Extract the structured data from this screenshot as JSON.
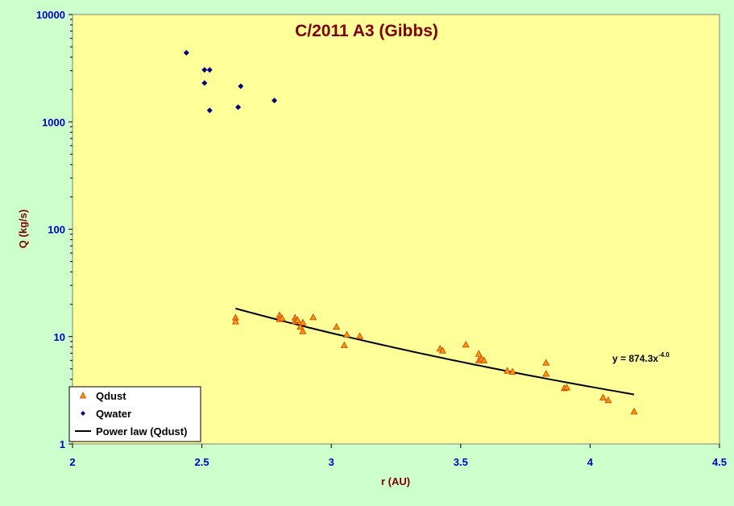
{
  "chart_data": {
    "type": "scatter",
    "title": "C/2011 A3 (Gibbs)",
    "xlabel": "r (AU)",
    "ylabel": "Q (kg/s)",
    "xlim": [
      2,
      4.5
    ],
    "ylim": [
      1,
      10000
    ],
    "yscale": "log",
    "x_ticks": [
      "2",
      "2.5",
      "3",
      "3.5",
      "4",
      "4.5"
    ],
    "y_ticks": [
      "1",
      "10",
      "100",
      "1000",
      "10000"
    ],
    "grid": false,
    "legend_position": "bottom-left",
    "series": [
      {
        "name": "Qdust",
        "marker": "triangle",
        "color": "#ff9900",
        "points": [
          [
            2.63,
            15.0
          ],
          [
            2.63,
            13.8
          ],
          [
            2.8,
            15.8
          ],
          [
            2.8,
            14.5
          ],
          [
            2.81,
            14.8
          ],
          [
            2.86,
            15.0
          ],
          [
            2.86,
            13.8
          ],
          [
            2.87,
            14.2
          ],
          [
            2.88,
            12.3
          ],
          [
            2.89,
            13.5
          ],
          [
            2.89,
            11.2
          ],
          [
            2.93,
            15.1
          ],
          [
            3.02,
            12.3
          ],
          [
            3.05,
            8.3
          ],
          [
            3.06,
            10.4
          ],
          [
            3.11,
            10.1
          ],
          [
            3.42,
            7.7
          ],
          [
            3.43,
            7.4
          ],
          [
            3.52,
            8.4
          ],
          [
            3.57,
            6.9
          ],
          [
            3.57,
            6.0
          ],
          [
            3.58,
            6.2
          ],
          [
            3.59,
            6.0
          ],
          [
            3.68,
            4.8
          ],
          [
            3.7,
            4.7
          ],
          [
            3.83,
            5.7
          ],
          [
            3.83,
            4.5
          ],
          [
            3.9,
            3.3
          ],
          [
            3.91,
            3.35
          ],
          [
            4.05,
            2.7
          ],
          [
            4.07,
            2.55
          ],
          [
            4.17,
            2.0
          ]
        ]
      },
      {
        "name": "Qwater",
        "marker": "diamond",
        "color": "#000080",
        "points": [
          [
            2.44,
            4400
          ],
          [
            2.51,
            2300
          ],
          [
            2.51,
            3050
          ],
          [
            2.53,
            3050
          ],
          [
            2.53,
            1280
          ],
          [
            2.64,
            1370
          ],
          [
            2.65,
            2150
          ],
          [
            2.78,
            1580
          ]
        ]
      }
    ],
    "trendline": {
      "name": "Power law (Qdust)",
      "color": "#000000",
      "coefficient": 874.3,
      "exponent": -4.0,
      "x_range": [
        2.63,
        4.17
      ],
      "equation_text": "y = 874.3x",
      "equation_exponent": "-4.0"
    }
  }
}
